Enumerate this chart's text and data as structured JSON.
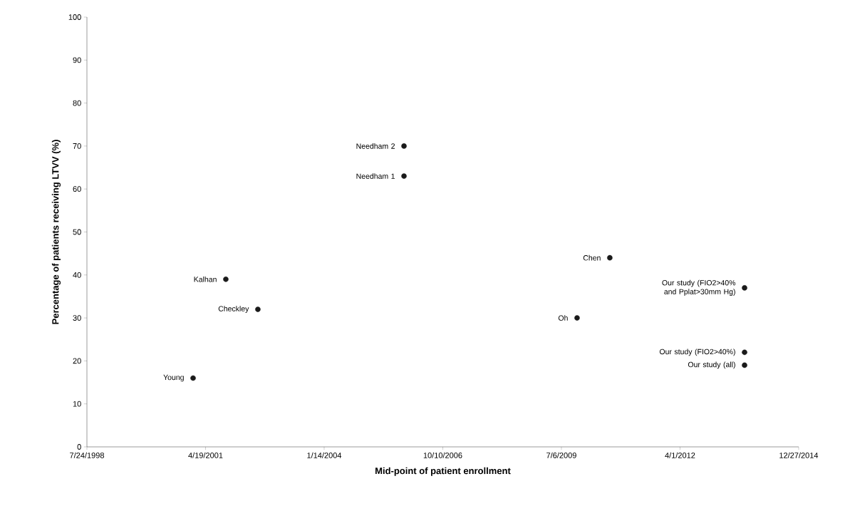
{
  "chart_data": {
    "type": "scatter",
    "xlabel": "Mid-point of patient enrollment",
    "ylabel": "Percentage of patients receiving LTVV (%)",
    "xlim": [
      "1998-07-24",
      "2014-12-27"
    ],
    "xticks": [
      {
        "value": "1998-07-24",
        "label": "7/24/1998"
      },
      {
        "value": "2001-04-19",
        "label": "4/19/2001"
      },
      {
        "value": "2004-01-14",
        "label": "1/14/2004"
      },
      {
        "value": "2006-10-10",
        "label": "10/10/2006"
      },
      {
        "value": "2009-07-06",
        "label": "7/6/2009"
      },
      {
        "value": "2012-04-01",
        "label": "4/1/2012"
      },
      {
        "value": "2014-12-27",
        "label": "12/27/2014"
      }
    ],
    "ylim": [
      0,
      100
    ],
    "yticks": [
      0,
      10,
      20,
      30,
      40,
      50,
      60,
      70,
      80,
      90,
      100
    ],
    "marker": "circle",
    "grid": false,
    "series": [
      {
        "color": "#1a1a1a",
        "x": [
          "2001-01-04",
          "2001-10-07",
          "2002-07-04",
          "2005-11-17",
          "2005-11-17",
          "2009-11-15",
          "2010-08-18",
          "2013-09-27",
          "2013-09-27",
          "2013-09-27"
        ],
        "values": [
          16,
          39,
          32,
          70,
          63,
          30,
          44,
          37,
          22,
          19
        ]
      }
    ],
    "annotations": [
      {
        "text": "Young",
        "x": "2001-01-04",
        "y": 16
      },
      {
        "text": "Kalhan",
        "x": "2001-10-07",
        "y": 39
      },
      {
        "text": "Checkley",
        "x": "2002-07-04",
        "y": 32
      },
      {
        "text": "Needham 2",
        "x": "2005-11-17",
        "y": 70
      },
      {
        "text": "Needham 1",
        "x": "2005-11-17",
        "y": 63
      },
      {
        "text": "Oh",
        "x": "2009-11-15",
        "y": 30
      },
      {
        "text": "Chen",
        "x": "2010-08-18",
        "y": 44
      },
      {
        "text": "Our study (FIO2>40% and Pplat>30mm Hg)",
        "x": "2013-09-27",
        "y": 37
      },
      {
        "text": "Our study (FIO2>40%)",
        "x": "2013-09-27",
        "y": 22
      },
      {
        "text": "Our study (all)",
        "x": "2013-09-27",
        "y": 19
      }
    ]
  }
}
